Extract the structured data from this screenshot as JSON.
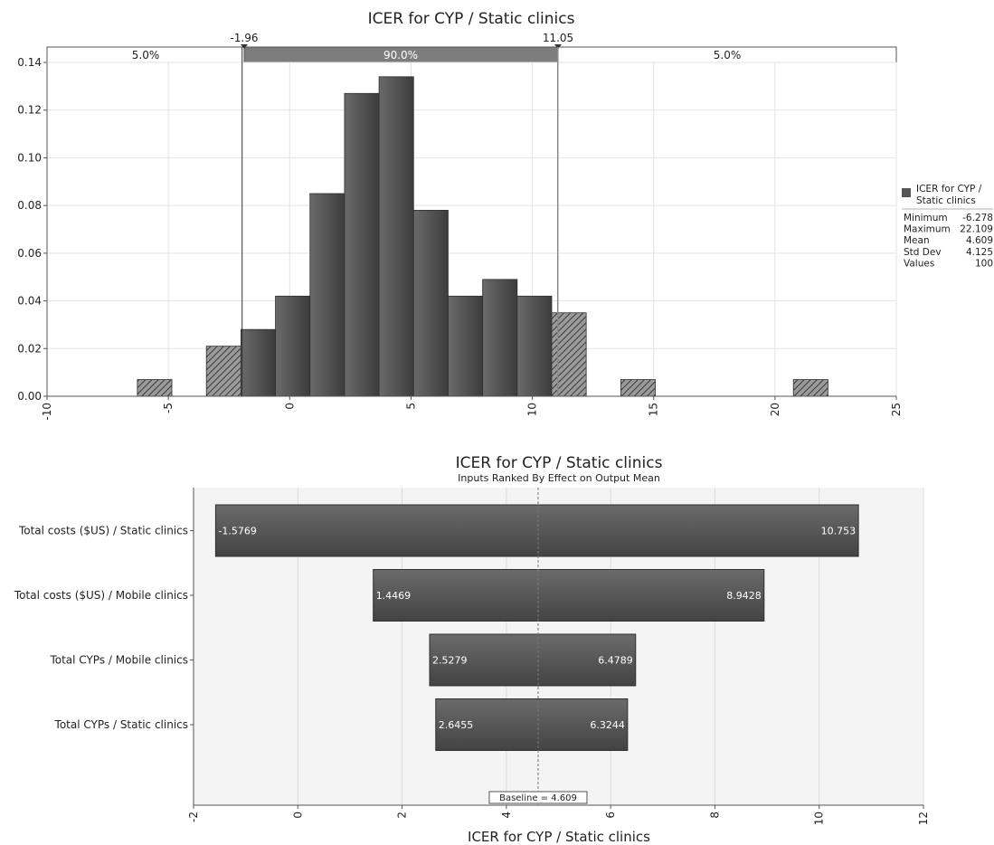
{
  "chart_data": [
    {
      "type": "bar",
      "title": "ICER for CYP / Static clinics",
      "xlim": [
        -10,
        25
      ],
      "ylim": [
        0,
        0.14
      ],
      "x_ticks": [
        "-10",
        "-5",
        "0",
        "5",
        "10",
        "15",
        "20",
        "25"
      ],
      "y_ticks": [
        "0.00",
        "0.02",
        "0.04",
        "0.06",
        "0.08",
        "0.10",
        "0.12",
        "0.14"
      ],
      "grid": true,
      "bins": [
        {
          "x0": -6.278,
          "x1": -4.855,
          "value": 0.007
        },
        {
          "x0": -4.855,
          "x1": -3.432,
          "value": 0.0
        },
        {
          "x0": -3.432,
          "x1": -2.009,
          "value": 0.021
        },
        {
          "x0": -2.009,
          "x1": -0.586,
          "value": 0.028
        },
        {
          "x0": -0.586,
          "x1": 0.837,
          "value": 0.042
        },
        {
          "x0": 0.837,
          "x1": 2.26,
          "value": 0.085
        },
        {
          "x0": 2.26,
          "x1": 3.683,
          "value": 0.127
        },
        {
          "x0": 3.683,
          "x1": 5.106,
          "value": 0.134
        },
        {
          "x0": 5.106,
          "x1": 6.529,
          "value": 0.078
        },
        {
          "x0": 6.529,
          "x1": 7.952,
          "value": 0.042
        },
        {
          "x0": 7.952,
          "x1": 9.375,
          "value": 0.049
        },
        {
          "x0": 9.375,
          "x1": 10.798,
          "value": 0.042
        },
        {
          "x0": 10.798,
          "x1": 12.221,
          "value": 0.035
        },
        {
          "x0": 12.221,
          "x1": 13.644,
          "value": 0.0
        },
        {
          "x0": 13.644,
          "x1": 15.067,
          "value": 0.007
        },
        {
          "x0": 15.067,
          "x1": 16.49,
          "value": 0.0
        },
        {
          "x0": 16.49,
          "x1": 17.913,
          "value": 0.0
        },
        {
          "x0": 17.913,
          "x1": 19.336,
          "value": 0.0
        },
        {
          "x0": 19.336,
          "x1": 20.759,
          "value": 0.0
        },
        {
          "x0": 20.759,
          "x1": 22.182,
          "value": 0.007
        }
      ],
      "interval": {
        "lower": -1.96,
        "upper": 11.05,
        "lower_label": "-1.96",
        "upper_label": "11.05",
        "left_pct": "5.0%",
        "center_pct": "90.0%",
        "right_pct": "5.0%"
      },
      "legend": {
        "placement": "right",
        "series_name": "ICER for CYP / Static clinics",
        "series_name_lines": [
          "ICER for CYP /",
          "Static clinics"
        ],
        "stats": [
          {
            "label": "Minimum",
            "value": "-6.278"
          },
          {
            "label": "Maximum",
            "value": "22.109"
          },
          {
            "label": "Mean",
            "value": "4.609"
          },
          {
            "label": "Std Dev",
            "value": "4.125"
          },
          {
            "label": "Values",
            "value": "100"
          }
        ]
      },
      "colors": {
        "bar": "#5a5a5a",
        "tail_bar": "#7a7a7a",
        "interval_band": "#7d7d7d"
      }
    },
    {
      "type": "bar",
      "orientation": "horizontal",
      "title": "ICER for CYP / Static clinics",
      "subtitle": "Inputs Ranked By Effect on Output Mean",
      "xlabel": "ICER for CYP / Static clinics",
      "xlim": [
        -2,
        12
      ],
      "x_ticks": [
        "-2",
        "0",
        "2",
        "4",
        "6",
        "8",
        "10",
        "12"
      ],
      "grid": true,
      "baseline": 4.609,
      "baseline_label": "Baseline = 4.609",
      "bars": [
        {
          "label": "Total costs ($US) / Static clinics",
          "low": -1.5769,
          "high": 10.753,
          "low_label": "-1.5769",
          "high_label": "10.753"
        },
        {
          "label": "Total costs ($US) / Mobile clinics",
          "low": 1.4469,
          "high": 8.9428,
          "low_label": "1.4469",
          "high_label": "8.9428"
        },
        {
          "label": "Total CYPs / Mobile clinics",
          "low": 2.5279,
          "high": 6.4789,
          "low_label": "2.5279",
          "high_label": "6.4789"
        },
        {
          "label": "Total CYPs / Static clinics",
          "low": 2.6455,
          "high": 6.3244,
          "low_label": "2.6455",
          "high_label": "6.3244"
        }
      ],
      "colors": {
        "bar": "#555555"
      }
    }
  ]
}
